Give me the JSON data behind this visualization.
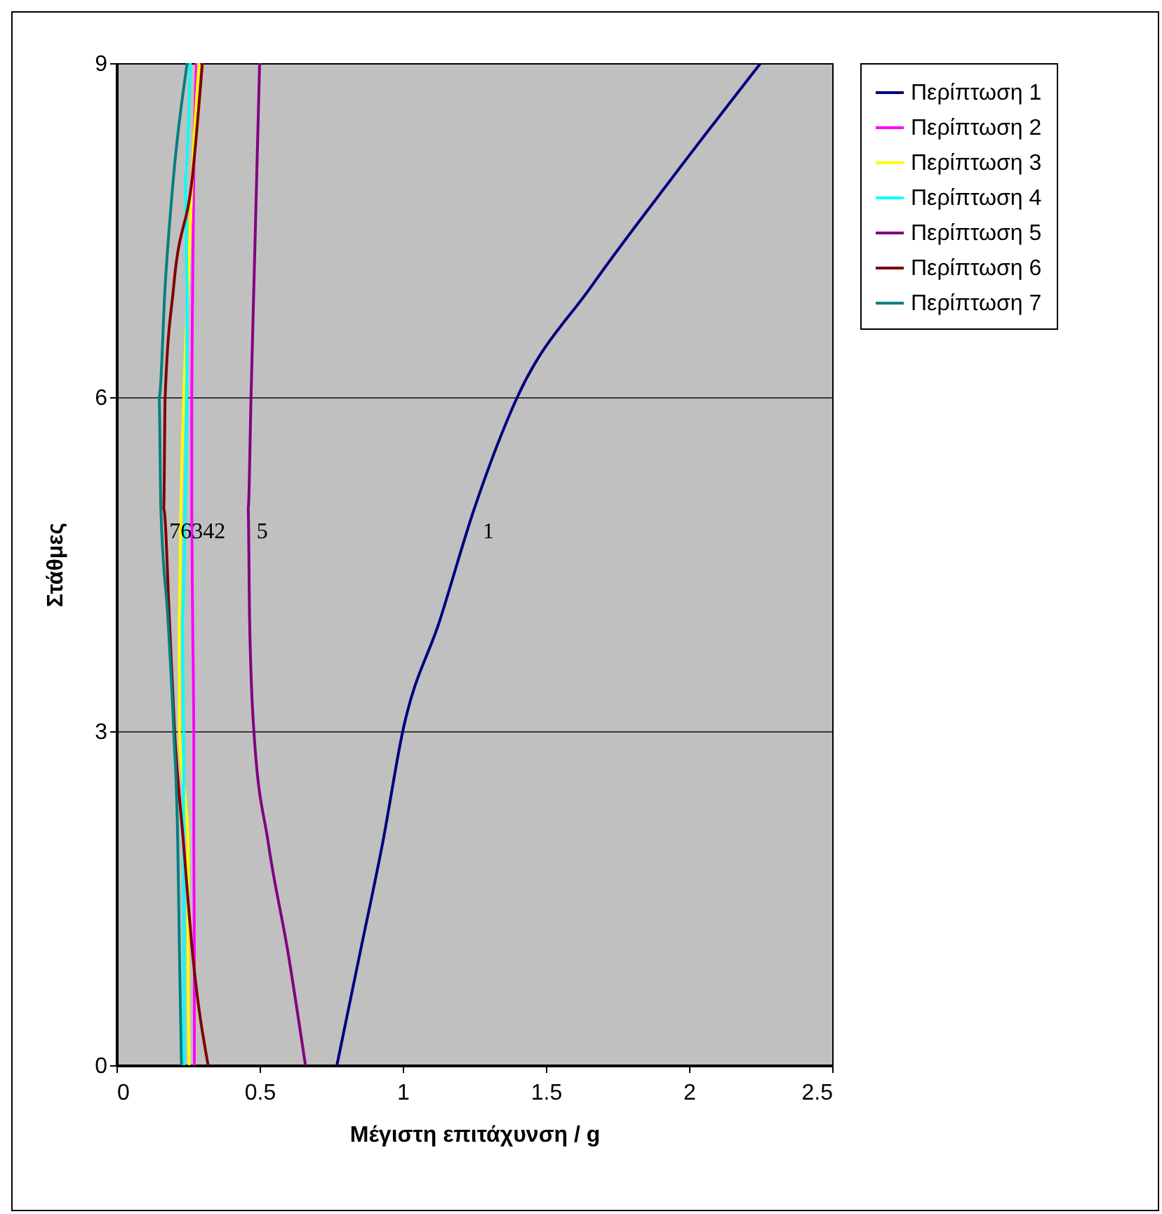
{
  "chart_data": {
    "type": "line",
    "xlabel": "Μέγιστη επιτάχυνση / g",
    "ylabel": "Στάθμες",
    "xlim": [
      0,
      2.5
    ],
    "xticks": [
      0,
      0.5,
      1,
      1.5,
      2,
      2.5
    ],
    "ylim": [
      0,
      9
    ],
    "yticks": [
      0,
      3,
      6,
      9
    ],
    "grid": "y",
    "legend": "right",
    "series": [
      {
        "name": "Περίπτωση 1",
        "color": "#000080",
        "x": [
          0.77,
          0.85,
          0.93,
          1.0,
          1.13,
          1.25,
          1.4,
          1.66,
          1.95,
          2.25
        ],
        "values": [
          0,
          1,
          2,
          3,
          4,
          5,
          6,
          7,
          8,
          9
        ]
      },
      {
        "name": "Περίπτωση 2",
        "color": "#ff00ff",
        "x": [
          0.272,
          0.272,
          0.27,
          0.27,
          0.266,
          0.263,
          0.263,
          0.266,
          0.27,
          0.28
        ],
        "values": [
          0,
          1,
          2,
          3,
          4,
          5,
          6,
          7,
          8,
          9
        ]
      },
      {
        "name": "Περίπτωση 3",
        "color": "#ffff00",
        "x": [
          0.254,
          0.25,
          0.25,
          0.22,
          0.219,
          0.225,
          0.235,
          0.25,
          0.265,
          0.288
        ],
        "values": [
          0,
          1,
          2,
          3,
          4,
          5,
          6,
          7,
          8,
          9
        ]
      },
      {
        "name": "Περίπτωση 4",
        "color": "#00ffff",
        "x": [
          0.236,
          0.236,
          0.234,
          0.235,
          0.23,
          0.24,
          0.245,
          0.247,
          0.24,
          0.258
        ],
        "values": [
          0,
          1,
          2,
          3,
          4,
          5,
          6,
          7,
          8,
          9
        ]
      },
      {
        "name": "Περίπτωση 5",
        "color": "#800080",
        "x": [
          0.66,
          0.6,
          0.53,
          0.48,
          0.465,
          0.46,
          0.47,
          0.48,
          0.49,
          0.5
        ],
        "values": [
          0,
          1,
          2,
          3,
          4,
          5,
          6,
          7,
          8,
          9
        ]
      },
      {
        "name": "Περίπτωση 6",
        "color": "#800000",
        "x": [
          0.32,
          0.266,
          0.234,
          0.203,
          0.185,
          0.165,
          0.17,
          0.2,
          0.266,
          0.3
        ],
        "values": [
          0,
          1,
          2,
          3,
          4,
          5,
          6,
          7,
          8,
          9
        ]
      },
      {
        "name": "Περίπτωση 7",
        "color": "#008080",
        "x": [
          0.227,
          0.22,
          0.214,
          0.2,
          0.18,
          0.155,
          0.149,
          0.17,
          0.2,
          0.247
        ],
        "values": [
          0,
          1,
          2,
          3,
          4,
          5,
          6,
          7,
          8,
          9
        ]
      }
    ],
    "annotations": [
      {
        "text": "76342",
        "x": 0.155,
        "y": 5
      },
      {
        "text": "5",
        "x": 0.46,
        "y": 5
      },
      {
        "text": "1",
        "x": 1.25,
        "y": 5
      }
    ]
  }
}
